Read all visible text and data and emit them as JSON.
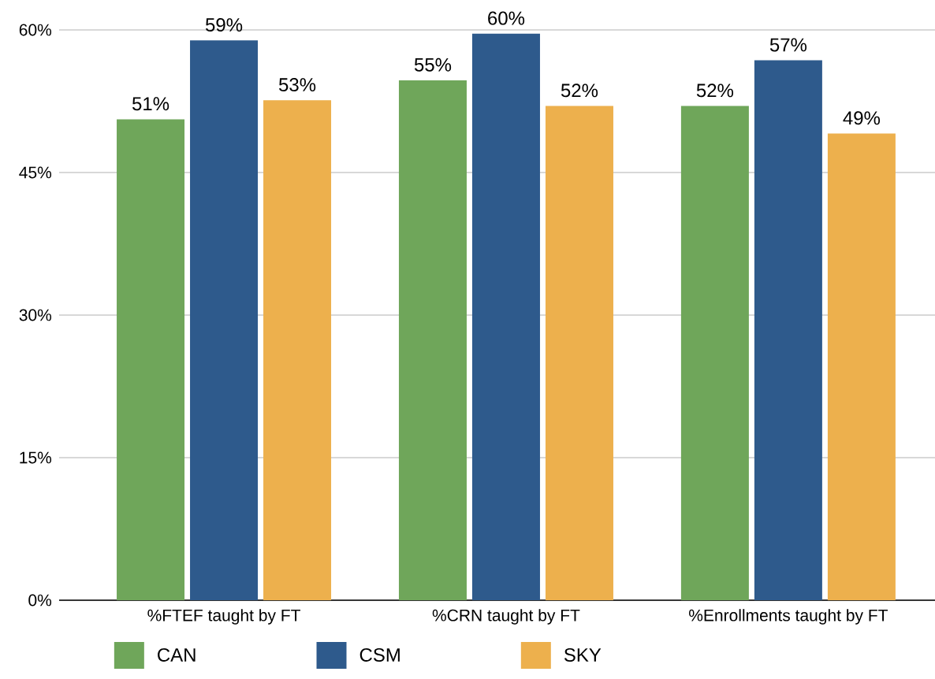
{
  "chart_data": {
    "type": "bar",
    "categories": [
      "%FTEF taught by FT",
      "%CRN taught by FT",
      "%Enrollments taught by FT"
    ],
    "series": [
      {
        "name": "CAN",
        "color": "#6fa65a",
        "values": [
          50.6,
          54.7,
          52.0
        ],
        "value_labels": [
          "51%",
          "55%",
          "52%"
        ]
      },
      {
        "name": "CSM",
        "color": "#2e5a8c",
        "values": [
          58.9,
          59.6,
          56.8
        ],
        "value_labels": [
          "59%",
          "60%",
          "57%"
        ]
      },
      {
        "name": "SKY",
        "color": "#edb04d",
        "values": [
          52.6,
          52.0,
          49.1
        ],
        "value_labels": [
          "53%",
          "52%",
          "49%"
        ]
      }
    ],
    "ylim": [
      0,
      60
    ],
    "yticks": [
      {
        "value": 0,
        "label": "0%"
      },
      {
        "value": 15,
        "label": "15%"
      },
      {
        "value": 30,
        "label": "30%"
      },
      {
        "value": 45,
        "label": "45%"
      },
      {
        "value": 60,
        "label": "60%"
      }
    ],
    "grid": "y",
    "legend": "bottom"
  }
}
